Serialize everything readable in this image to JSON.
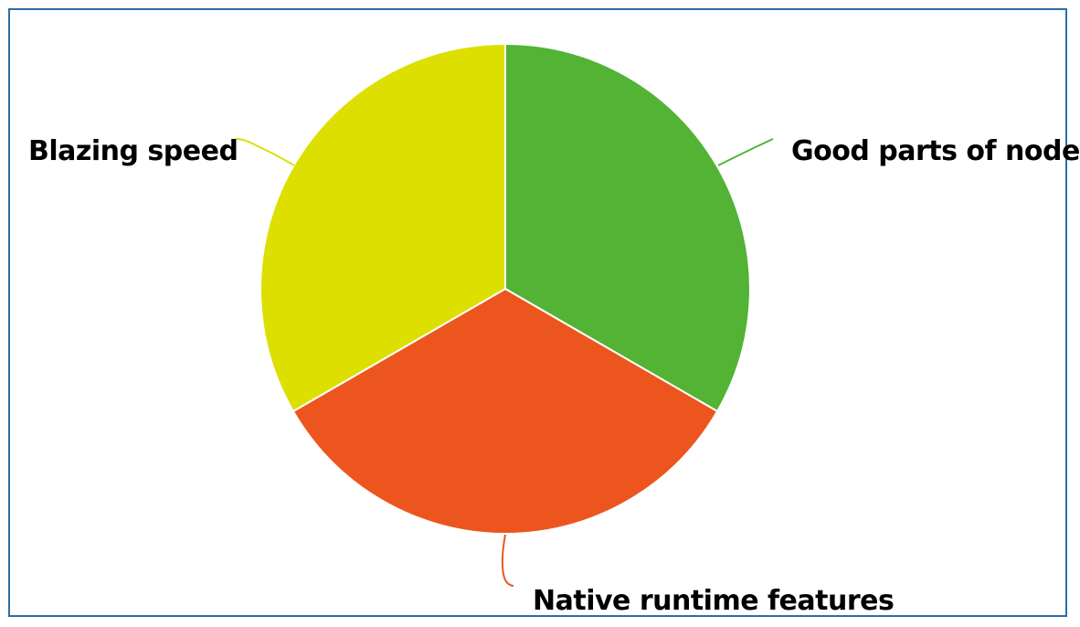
{
  "chart_data": {
    "type": "pie",
    "title": "",
    "slices": [
      {
        "label": "Good parts of node",
        "value": 33.33,
        "color": "#52b335"
      },
      {
        "label": "Native runtime features",
        "value": 33.33,
        "color": "#ec561e"
      },
      {
        "label": "Blazing speed",
        "value": 33.33,
        "color": "#dcdf00"
      }
    ],
    "start_angle_deg": 0,
    "direction": "clockwise",
    "legend": "none",
    "labels": "outside-with-leader-lines"
  }
}
